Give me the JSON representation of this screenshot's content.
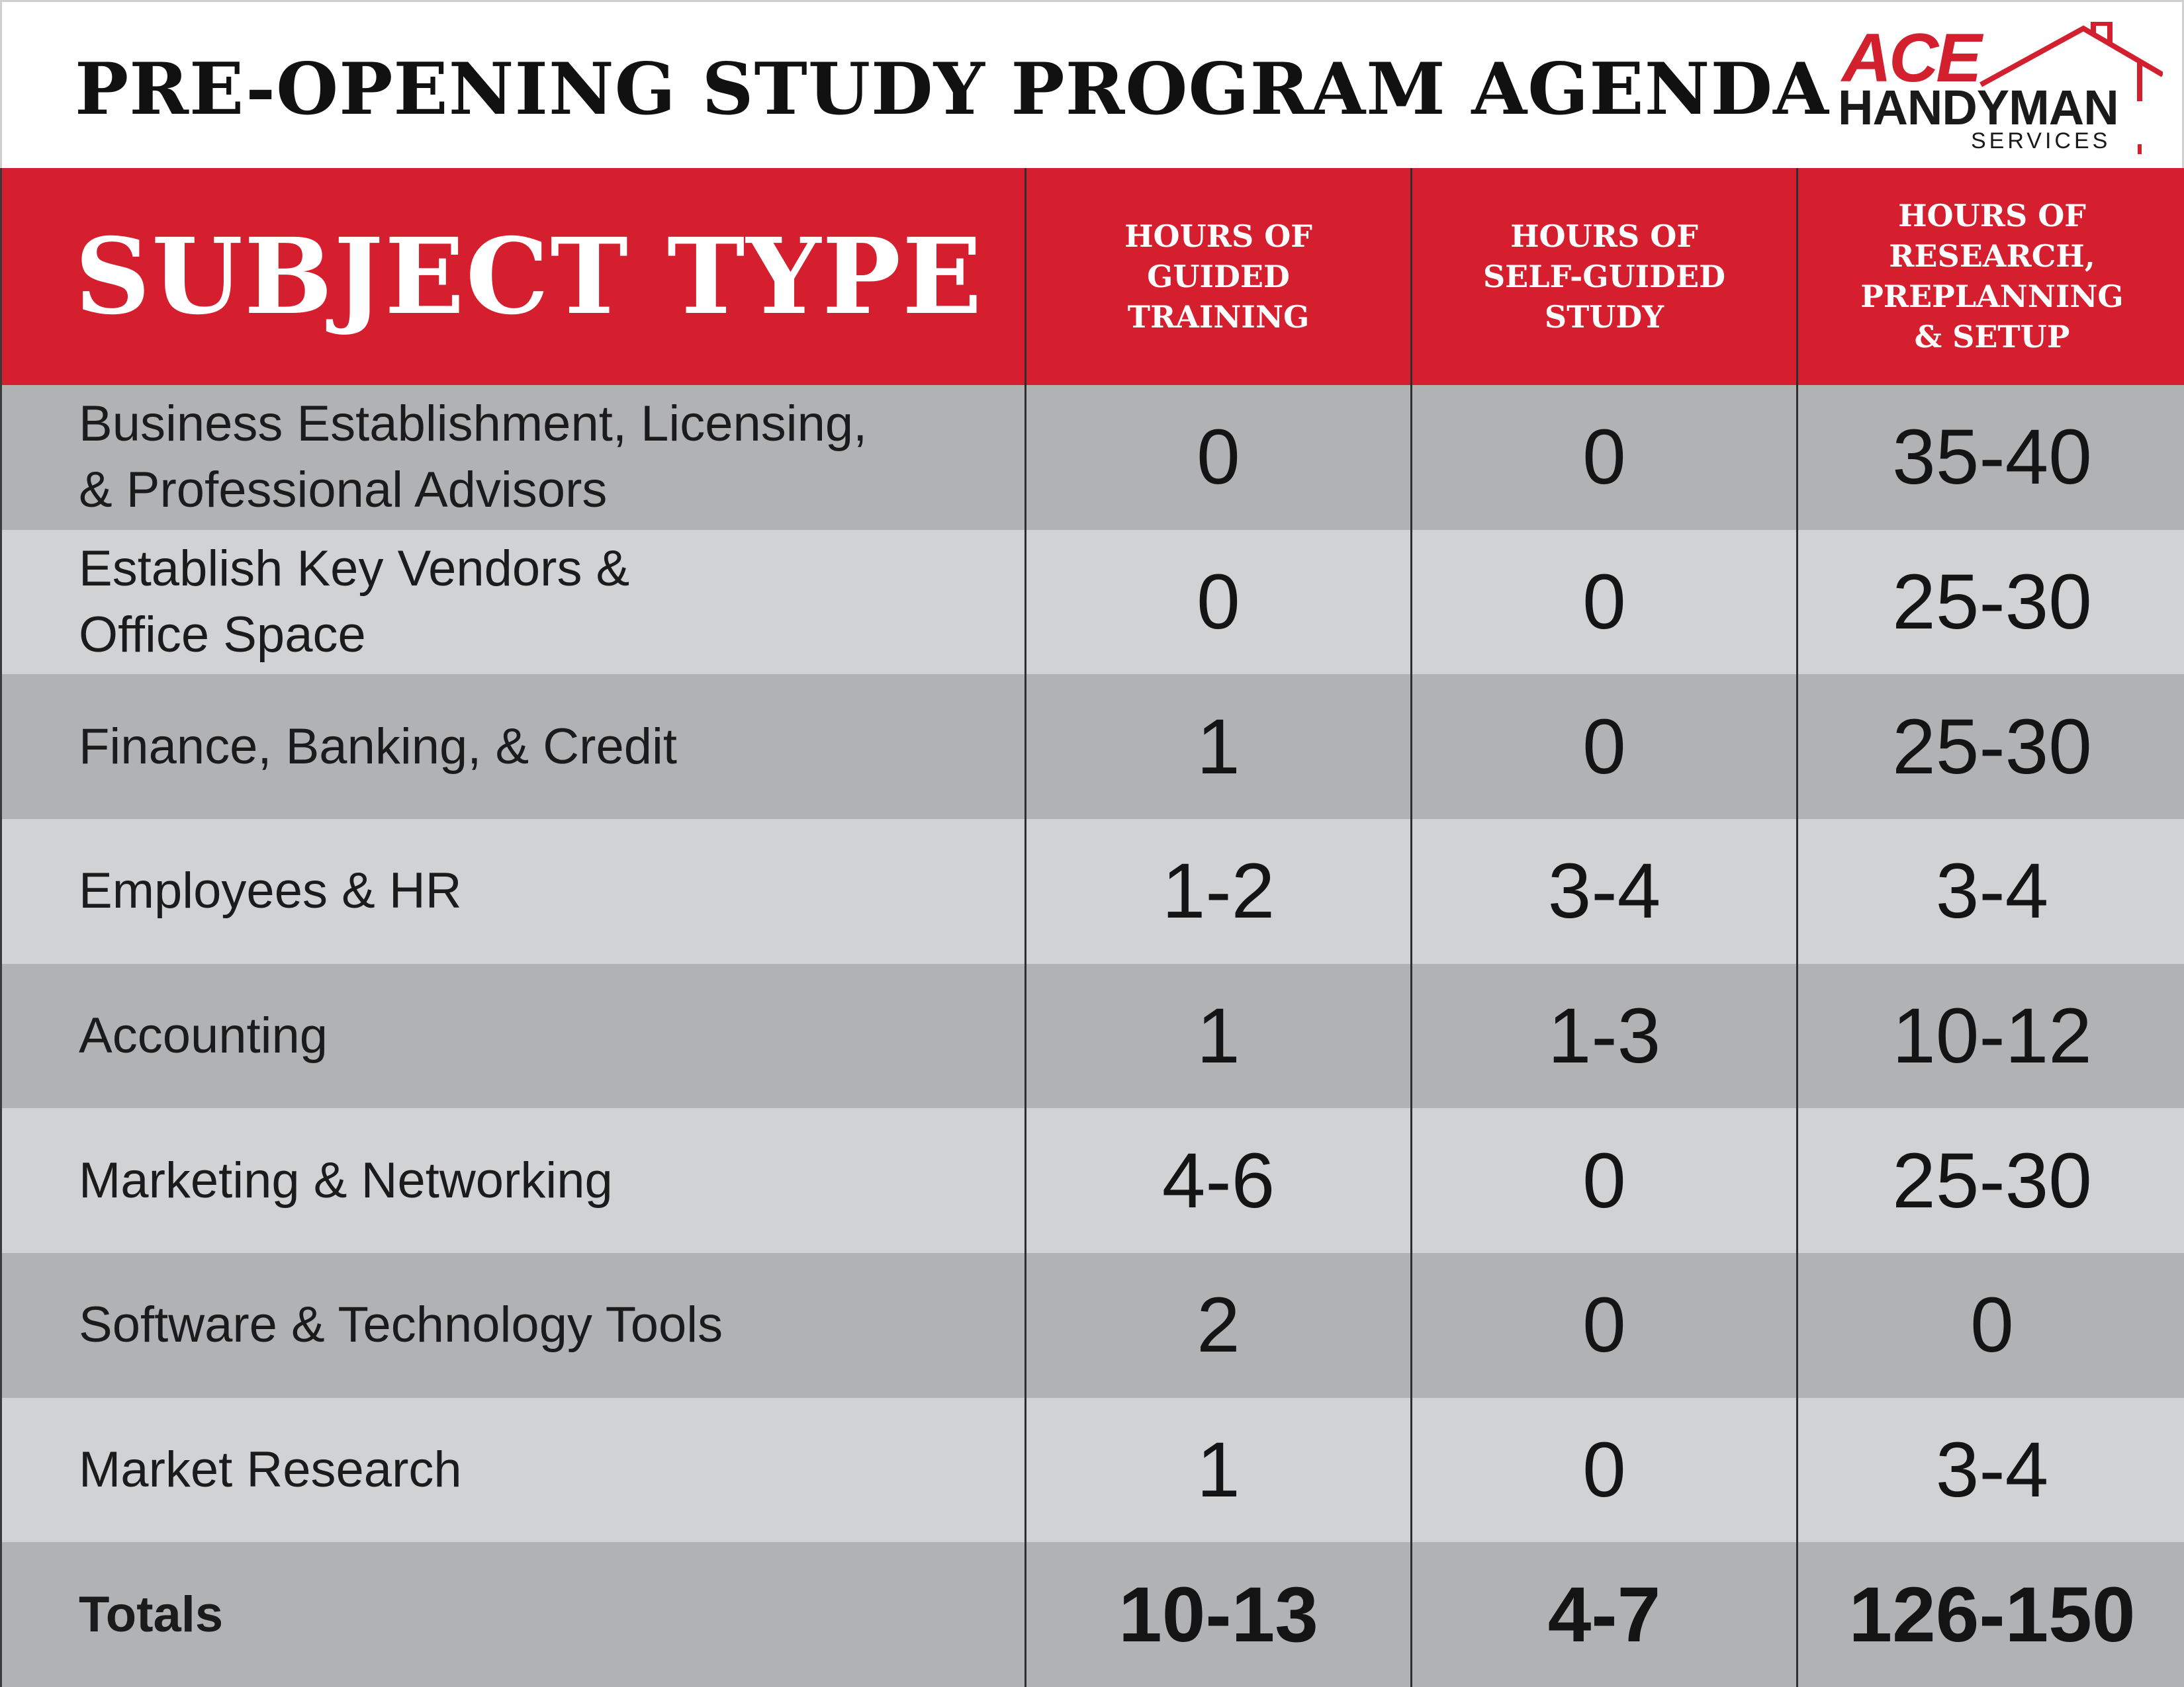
{
  "header": {
    "title": "PRE-OPENING STUDY PROGRAM AGENDA",
    "logo": {
      "word1": "ACE",
      "word2": "HANDYMAN",
      "word3": "SERVICES"
    }
  },
  "colors": {
    "brand_red": "#d51f2f",
    "row_dark": "#b1b2b4",
    "row_light": "#d1d2d4",
    "text": "#141414"
  },
  "table": {
    "subject_header": "SUBJECT TYPE",
    "columns": [
      "HOURS OF\nGUIDED\nTRAINING",
      "HOURS OF\nSELF-GUIDED\nSTUDY",
      "HOURS OF\nRESEARCH,\nPREPLANNING\n& SETUP"
    ],
    "rows": [
      {
        "subject": "Business Establishment, Licensing,\n& Professional Advisors",
        "guided": "0",
        "self": "0",
        "research": "35-40"
      },
      {
        "subject": "Establish Key Vendors &\nOffice Space",
        "guided": "0",
        "self": "0",
        "research": "25-30"
      },
      {
        "subject": "Finance, Banking, & Credit",
        "guided": "1",
        "self": "0",
        "research": "25-30"
      },
      {
        "subject": "Employees & HR",
        "guided": "1-2",
        "self": "3-4",
        "research": "3-4"
      },
      {
        "subject": "Accounting",
        "guided": "1",
        "self": "1-3",
        "research": "10-12"
      },
      {
        "subject": "Marketing & Networking",
        "guided": "4-6",
        "self": "0",
        "research": "25-30"
      },
      {
        "subject": "Software & Technology Tools",
        "guided": "2",
        "self": "0",
        "research": "0"
      },
      {
        "subject": "Market Research",
        "guided": "1",
        "self": "0",
        "research": "3-4"
      }
    ],
    "totals": {
      "label": "Totals",
      "guided": "10-13",
      "self": "4-7",
      "research": "126-150"
    }
  }
}
